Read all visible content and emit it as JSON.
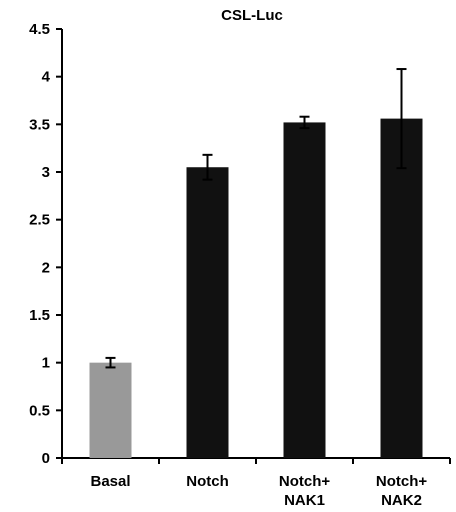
{
  "chart_data": {
    "type": "bar",
    "title": "CSL-Luc",
    "xlabel": "",
    "ylabel": "",
    "ylim": [
      0,
      4.5
    ],
    "yticks": [
      "0",
      "0.5",
      "1",
      "1.5",
      "2",
      "2.5",
      "3",
      "3.5",
      "4",
      "4.5"
    ],
    "categories": [
      [
        "Basal"
      ],
      [
        "Notch"
      ],
      [
        "Notch+",
        "NAK1"
      ],
      [
        "Notch+",
        "NAK2"
      ]
    ],
    "values": [
      1.0,
      3.05,
      3.52,
      3.56
    ],
    "error": [
      0.05,
      0.13,
      0.06,
      0.52
    ],
    "bar_colors": [
      "#999999",
      "#111111",
      "#111111",
      "#111111"
    ],
    "grid": false,
    "legend": "none"
  }
}
